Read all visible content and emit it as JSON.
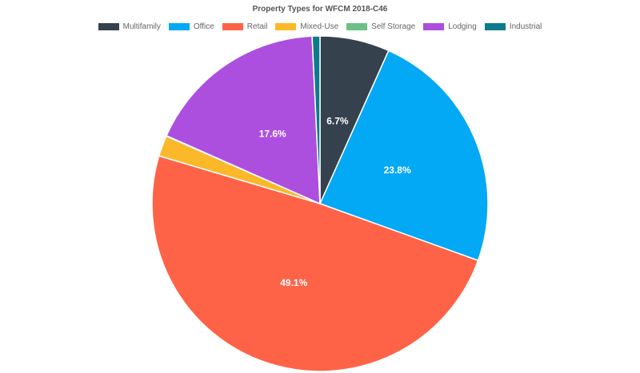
{
  "chart_data": {
    "type": "pie",
    "title": "Property Types for WFCM 2018-C46",
    "categories": [
      "Multifamily",
      "Office",
      "Retail",
      "Mixed-Use",
      "Self Storage",
      "Lodging",
      "Industrial"
    ],
    "values": [
      6.7,
      23.8,
      49.1,
      2.0,
      0.05,
      17.6,
      0.75
    ],
    "data_labels": [
      "6.7%",
      "23.8%",
      "49.1%",
      "",
      "",
      "17.6%",
      ""
    ],
    "colors": [
      "#36414e",
      "#03a9f4",
      "#ff6347",
      "#fbb829",
      "#6bc185",
      "#ac4fde",
      "#0e7b8b"
    ],
    "legend_position": "top-center"
  }
}
